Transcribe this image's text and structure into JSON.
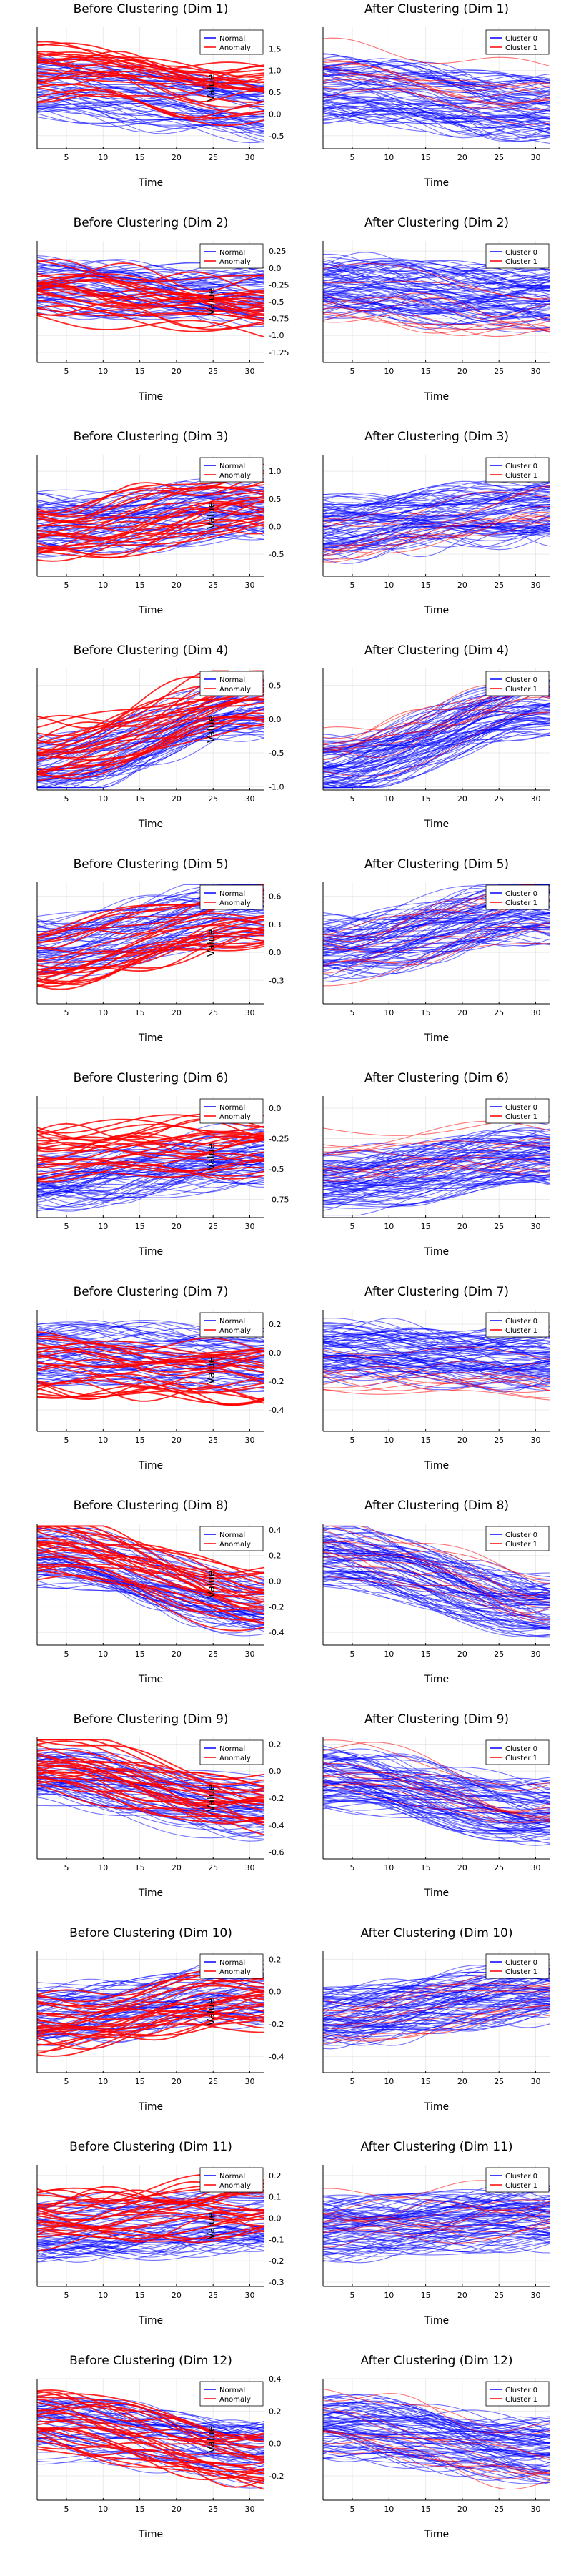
{
  "colors": {
    "normal": "#0000ff",
    "anomaly": "#ff0000"
  },
  "x_ticks": [
    5,
    10,
    15,
    20,
    25,
    30
  ],
  "xlim": [
    1,
    32
  ],
  "xlabel": "Time",
  "ylabel": "Value",
  "legend_before": [
    "Normal",
    "Anomaly"
  ],
  "legend_after": [
    "Cluster 0",
    "Cluster 1"
  ],
  "chart_data": [
    {
      "type": "line",
      "dim": 1,
      "before": {
        "title": "Before Clustering (Dim 1)",
        "ylim": [
          -0.8,
          2.0
        ],
        "yticks": [
          1.5,
          1.0,
          0.5,
          0.0,
          -0.5
        ],
        "series": [
          {
            "name": "Normal",
            "start": 0.6,
            "end": 0.1
          },
          {
            "name": "Anomaly",
            "start": 1.0,
            "end": 0.5
          }
        ]
      },
      "after": {
        "title": "After Clustering (Dim 1)",
        "series": [
          {
            "name": "Cluster 0",
            "start": 0.6,
            "end": 0.1
          },
          {
            "name": "Cluster 1",
            "start": 1.0,
            "end": 0.5
          }
        ]
      }
    },
    {
      "type": "line",
      "dim": 2,
      "before": {
        "title": "Before Clustering (Dim 2)",
        "ylim": [
          -1.4,
          0.4
        ],
        "yticks": [
          0.25,
          0.0,
          -0.25,
          -0.5,
          -0.75,
          -1.0,
          -1.25
        ],
        "series": [
          {
            "name": "Normal",
            "start": -0.3,
            "end": -0.45
          },
          {
            "name": "Anomaly",
            "start": -0.35,
            "end": -0.6
          }
        ]
      },
      "after": {
        "title": "After Clustering (Dim 2)",
        "series": [
          {
            "name": "Cluster 0",
            "start": -0.3,
            "end": -0.45
          },
          {
            "name": "Cluster 1",
            "start": -0.35,
            "end": -0.6
          }
        ]
      }
    },
    {
      "type": "line",
      "dim": 3,
      "before": {
        "title": "Before Clustering (Dim 3)",
        "ylim": [
          -0.9,
          1.3
        ],
        "yticks": [
          1.0,
          0.5,
          0.0,
          -0.5
        ],
        "series": [
          {
            "name": "Normal",
            "start": 0.0,
            "end": 0.3
          },
          {
            "name": "Anomaly",
            "start": -0.1,
            "end": 0.5
          }
        ]
      },
      "after": {
        "title": "After Clustering (Dim 3)",
        "series": [
          {
            "name": "Cluster 0",
            "start": 0.0,
            "end": 0.3
          },
          {
            "name": "Cluster 1",
            "start": -0.1,
            "end": 0.5
          }
        ]
      }
    },
    {
      "type": "line",
      "dim": 4,
      "before": {
        "title": "Before Clustering (Dim 4)",
        "ylim": [
          -1.05,
          0.75
        ],
        "yticks": [
          0.5,
          0.0,
          -0.5,
          -1.0
        ],
        "series": [
          {
            "name": "Normal",
            "start": -0.7,
            "end": 0.2
          },
          {
            "name": "Anomaly",
            "start": -0.5,
            "end": 0.3
          }
        ]
      },
      "after": {
        "title": "After Clustering (Dim 4)",
        "series": [
          {
            "name": "Cluster 0",
            "start": -0.7,
            "end": 0.2
          },
          {
            "name": "Cluster 1",
            "start": -0.5,
            "end": 0.3
          }
        ]
      }
    },
    {
      "type": "line",
      "dim": 5,
      "before": {
        "title": "Before Clustering (Dim 5)",
        "ylim": [
          -0.55,
          0.75
        ],
        "yticks": [
          0.6,
          0.3,
          0.0,
          -0.3
        ],
        "series": [
          {
            "name": "Normal",
            "start": 0.05,
            "end": 0.45
          },
          {
            "name": "Anomaly",
            "start": -0.05,
            "end": 0.4
          }
        ]
      },
      "after": {
        "title": "After Clustering (Dim 5)",
        "series": [
          {
            "name": "Cluster 0",
            "start": 0.05,
            "end": 0.45
          },
          {
            "name": "Cluster 1",
            "start": -0.05,
            "end": 0.4
          }
        ]
      }
    },
    {
      "type": "line",
      "dim": 6,
      "before": {
        "title": "Before Clustering (Dim 6)",
        "ylim": [
          -0.9,
          0.1
        ],
        "yticks": [
          0.0,
          -0.25,
          -0.5,
          -0.75
        ],
        "series": [
          {
            "name": "Normal",
            "start": -0.6,
            "end": -0.4
          },
          {
            "name": "Anomaly",
            "start": -0.35,
            "end": -0.3
          }
        ]
      },
      "after": {
        "title": "After Clustering (Dim 6)",
        "series": [
          {
            "name": "Cluster 0",
            "start": -0.6,
            "end": -0.4
          },
          {
            "name": "Cluster 1",
            "start": -0.35,
            "end": -0.3
          }
        ]
      }
    },
    {
      "type": "line",
      "dim": 7,
      "before": {
        "title": "Before Clustering (Dim 7)",
        "ylim": [
          -0.55,
          0.3
        ],
        "yticks": [
          0.2,
          0.0,
          -0.2,
          -0.4
        ],
        "series": [
          {
            "name": "Normal",
            "start": 0.0,
            "end": -0.05
          },
          {
            "name": "Anomaly",
            "start": -0.1,
            "end": -0.15
          }
        ]
      },
      "after": {
        "title": "After Clustering (Dim 7)",
        "series": [
          {
            "name": "Cluster 0",
            "start": 0.0,
            "end": -0.05
          },
          {
            "name": "Cluster 1",
            "start": -0.1,
            "end": -0.15
          }
        ]
      }
    },
    {
      "type": "line",
      "dim": 8,
      "before": {
        "title": "Before Clustering (Dim 8)",
        "ylim": [
          -0.5,
          0.45
        ],
        "yticks": [
          0.4,
          0.2,
          0.0,
          -0.2,
          -0.4
        ],
        "series": [
          {
            "name": "Normal",
            "start": 0.2,
            "end": -0.2
          },
          {
            "name": "Anomaly",
            "start": 0.25,
            "end": -0.15
          }
        ]
      },
      "after": {
        "title": "After Clustering (Dim 8)",
        "series": [
          {
            "name": "Cluster 0",
            "start": 0.2,
            "end": -0.2
          },
          {
            "name": "Cluster 1",
            "start": 0.25,
            "end": -0.15
          }
        ]
      }
    },
    {
      "type": "line",
      "dim": 9,
      "before": {
        "title": "Before Clustering (Dim 9)",
        "ylim": [
          -0.65,
          0.25
        ],
        "yticks": [
          0.2,
          0.0,
          -0.2,
          -0.4,
          -0.6
        ],
        "series": [
          {
            "name": "Normal",
            "start": -0.05,
            "end": -0.3
          },
          {
            "name": "Anomaly",
            "start": 0.05,
            "end": -0.25
          }
        ]
      },
      "after": {
        "title": "After Clustering (Dim 9)",
        "series": [
          {
            "name": "Cluster 0",
            "start": -0.05,
            "end": -0.3
          },
          {
            "name": "Cluster 1",
            "start": 0.05,
            "end": -0.25
          }
        ]
      }
    },
    {
      "type": "line",
      "dim": 10,
      "before": {
        "title": "Before Clustering (Dim 10)",
        "ylim": [
          -0.5,
          0.25
        ],
        "yticks": [
          0.2,
          0.0,
          -0.2,
          -0.4
        ],
        "series": [
          {
            "name": "Normal",
            "start": -0.15,
            "end": 0.0
          },
          {
            "name": "Anomaly",
            "start": -0.2,
            "end": -0.05
          }
        ]
      },
      "after": {
        "title": "After Clustering (Dim 10)",
        "series": [
          {
            "name": "Cluster 0",
            "start": -0.15,
            "end": 0.0
          },
          {
            "name": "Cluster 1",
            "start": -0.2,
            "end": -0.05
          }
        ]
      }
    },
    {
      "type": "line",
      "dim": 11,
      "before": {
        "title": "Before Clustering (Dim 11)",
        "ylim": [
          -0.32,
          0.25
        ],
        "yticks": [
          0.2,
          0.1,
          0.0,
          -0.1,
          -0.2,
          -0.3
        ],
        "series": [
          {
            "name": "Normal",
            "start": -0.05,
            "end": 0.0
          },
          {
            "name": "Anomaly",
            "start": 0.0,
            "end": 0.05
          }
        ]
      },
      "after": {
        "title": "After Clustering (Dim 11)",
        "series": [
          {
            "name": "Cluster 0",
            "start": -0.05,
            "end": 0.0
          },
          {
            "name": "Cluster 1",
            "start": 0.0,
            "end": 0.05
          }
        ]
      }
    },
    {
      "type": "line",
      "dim": 12,
      "before": {
        "title": "Before Clustering (Dim 12)",
        "ylim": [
          -0.35,
          0.4
        ],
        "yticks": [
          0.4,
          0.2,
          0.0,
          -0.2
        ],
        "series": [
          {
            "name": "Normal",
            "start": 0.1,
            "end": -0.05
          },
          {
            "name": "Anomaly",
            "start": 0.15,
            "end": -0.1
          }
        ]
      },
      "after": {
        "title": "After Clustering (Dim 12)",
        "series": [
          {
            "name": "Cluster 0",
            "start": 0.1,
            "end": -0.05
          },
          {
            "name": "Cluster 1",
            "start": 0.15,
            "end": -0.1
          }
        ]
      }
    }
  ]
}
